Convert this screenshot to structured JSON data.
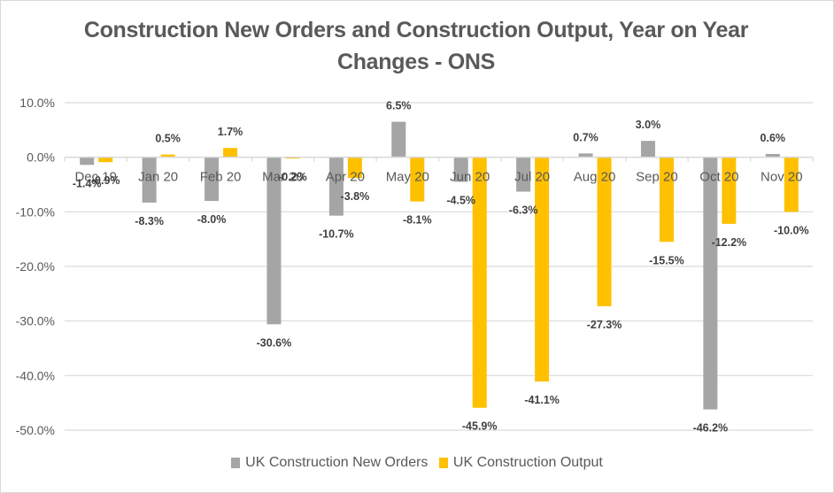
{
  "chart_data": {
    "type": "bar",
    "title": "Construction New Orders and Construction Output, Year on Year Changes - ONS",
    "xlabel": "",
    "ylabel": "",
    "ylim": [
      -50,
      10
    ],
    "yticks": [
      10,
      0,
      -10,
      -20,
      -30,
      -40,
      -50
    ],
    "ytick_labels": [
      "10.0%",
      "0.0%",
      "-10.0%",
      "-20.0%",
      "-30.0%",
      "-40.0%",
      "-50.0%"
    ],
    "grid": true,
    "legend_position": "bottom",
    "categories": [
      "Dec 19",
      "Jan 20",
      "Feb 20",
      "Mar 20",
      "Apr 20",
      "May 20",
      "Jun 20",
      "Jul 20",
      "Aug 20",
      "Sep 20",
      "Oct 20",
      "Nov 20"
    ],
    "series": [
      {
        "name": "UK Construction New Orders",
        "color": "#a5a5a5",
        "values": [
          -1.4,
          -8.3,
          -8.0,
          -30.6,
          -10.7,
          6.5,
          -4.5,
          -6.3,
          0.7,
          3.0,
          -46.2,
          0.6
        ],
        "labels": [
          "-1.4%",
          "-8.3%",
          "-8.0%",
          "-30.6%",
          "-10.7%",
          "6.5%",
          "-4.5%",
          "-6.3%",
          "0.7%",
          "3.0%",
          "-46.2%",
          "0.6%"
        ]
      },
      {
        "name": "UK Construction Output",
        "color": "#ffc000",
        "values": [
          -0.9,
          0.5,
          1.7,
          -0.2,
          -3.8,
          -8.1,
          -45.9,
          -41.1,
          -27.3,
          -15.5,
          -12.2,
          -10.0
        ],
        "labels": [
          "-0.9%",
          "0.5%",
          "1.7%",
          "-0.2%",
          "-3.8%",
          "-8.1%",
          "-45.9%",
          "-41.1%",
          "-27.3%",
          "-15.5%",
          "-12.2%",
          "-10.0%"
        ]
      }
    ]
  }
}
